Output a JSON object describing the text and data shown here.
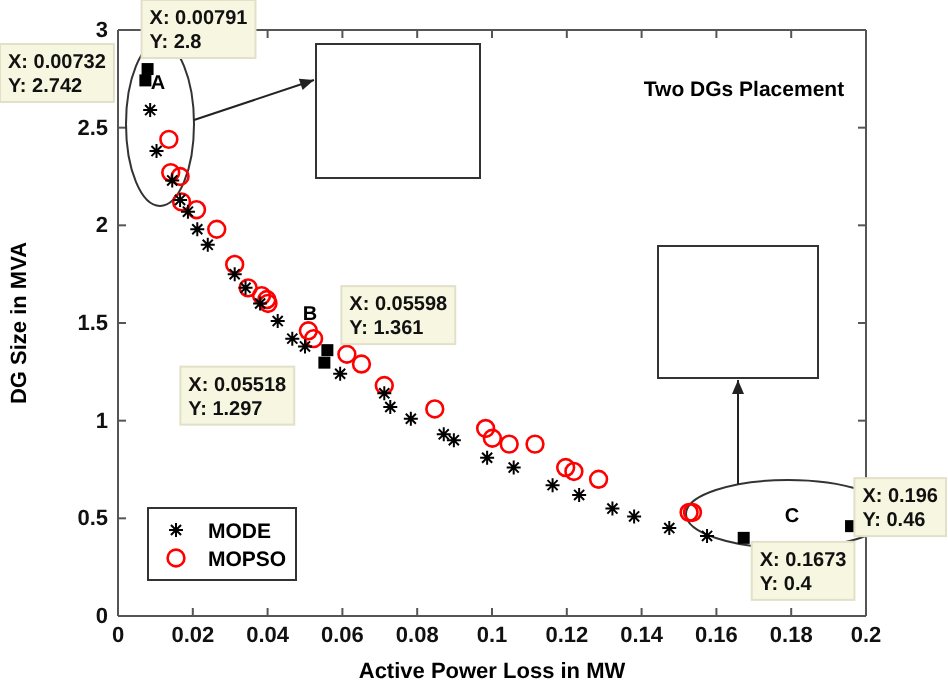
{
  "chart_data": {
    "type": "scatter",
    "title": "Two DGs Placement",
    "xlabel": "Active Power Loss in MW",
    "ylabel": "DG Size in MVA",
    "xlim": [
      0,
      0.2
    ],
    "xticks": [
      0,
      0.02,
      0.04,
      0.06,
      0.08,
      0.1,
      0.12,
      0.14,
      0.16,
      0.18,
      0.2
    ],
    "ylim": [
      0,
      3
    ],
    "yticks": [
      0,
      0.5,
      1,
      1.5,
      2,
      2.5,
      3
    ],
    "grid": false,
    "legend": "bottom left",
    "series": [
      {
        "name": "MODE",
        "color": "#000000",
        "marker": "cross",
        "x": [
          0.0086,
          0.0103,
          0.0145,
          0.0166,
          0.0187,
          0.0212,
          0.024,
          0.0312,
          0.0341,
          0.038,
          0.0427,
          0.0466,
          0.05,
          0.0594,
          0.0712,
          0.0728,
          0.0783,
          0.0871,
          0.0898,
          0.0987,
          0.1058,
          0.1162,
          0.1233,
          0.1322,
          0.138,
          0.1474,
          0.1575
        ],
        "values": [
          2.59,
          2.38,
          2.23,
          2.13,
          2.07,
          1.98,
          1.9,
          1.75,
          1.68,
          1.6,
          1.51,
          1.42,
          1.38,
          1.24,
          1.14,
          1.07,
          1.01,
          0.93,
          0.9,
          0.81,
          0.76,
          0.67,
          0.62,
          0.55,
          0.51,
          0.45,
          0.41
        ]
      },
      {
        "name": "MOPSO",
        "color": "#ff0000",
        "marker": "circle",
        "x": [
          0.0136,
          0.0141,
          0.0166,
          0.017,
          0.021,
          0.0264,
          0.0312,
          0.0348,
          0.0384,
          0.0398,
          0.0401,
          0.0509,
          0.0523,
          0.0612,
          0.0651,
          0.0712,
          0.0847,
          0.0983,
          0.1001,
          0.1046,
          0.1115,
          0.1197,
          0.1219,
          0.1285,
          0.1527,
          0.1536
        ],
        "values": [
          2.44,
          2.27,
          2.25,
          2.12,
          2.08,
          1.98,
          1.8,
          1.68,
          1.64,
          1.62,
          1.6,
          1.46,
          1.42,
          1.34,
          1.29,
          1.18,
          1.06,
          0.96,
          0.91,
          0.88,
          0.88,
          0.76,
          0.74,
          0.7,
          0.53,
          0.53
        ]
      },
      {
        "color": "#000000",
        "marker": "square",
        "x": [
          0.00732,
          0.00791,
          0.05518,
          0.05598,
          0.1673,
          0.196
        ],
        "values": [
          2.742,
          2.8,
          1.297,
          1.361,
          0.4,
          0.46
        ]
      }
    ],
    "annotations": [
      {
        "text": "X: 0.00732\nY: 2.742",
        "x": 0.00732,
        "y": 2.742
      },
      {
        "text": "X: 0.00791\nY: 2.8",
        "x": 0.00791,
        "y": 2.8
      },
      {
        "text": "X: 0.05518\nY: 1.297",
        "x": 0.05518,
        "y": 1.297
      },
      {
        "text": "X: 0.05598\nY: 1.361",
        "x": 0.05598,
        "y": 1.361
      },
      {
        "text": "X: 0.1673\nY: 0.4",
        "x": 0.1673,
        "y": 0.4
      },
      {
        "text": "X: 0.196\nY: 0.46",
        "x": 0.196,
        "y": 0.46
      },
      {
        "text": "A",
        "x": 0.0107,
        "y": 2.7
      },
      "B",
      "C"
    ]
  }
}
